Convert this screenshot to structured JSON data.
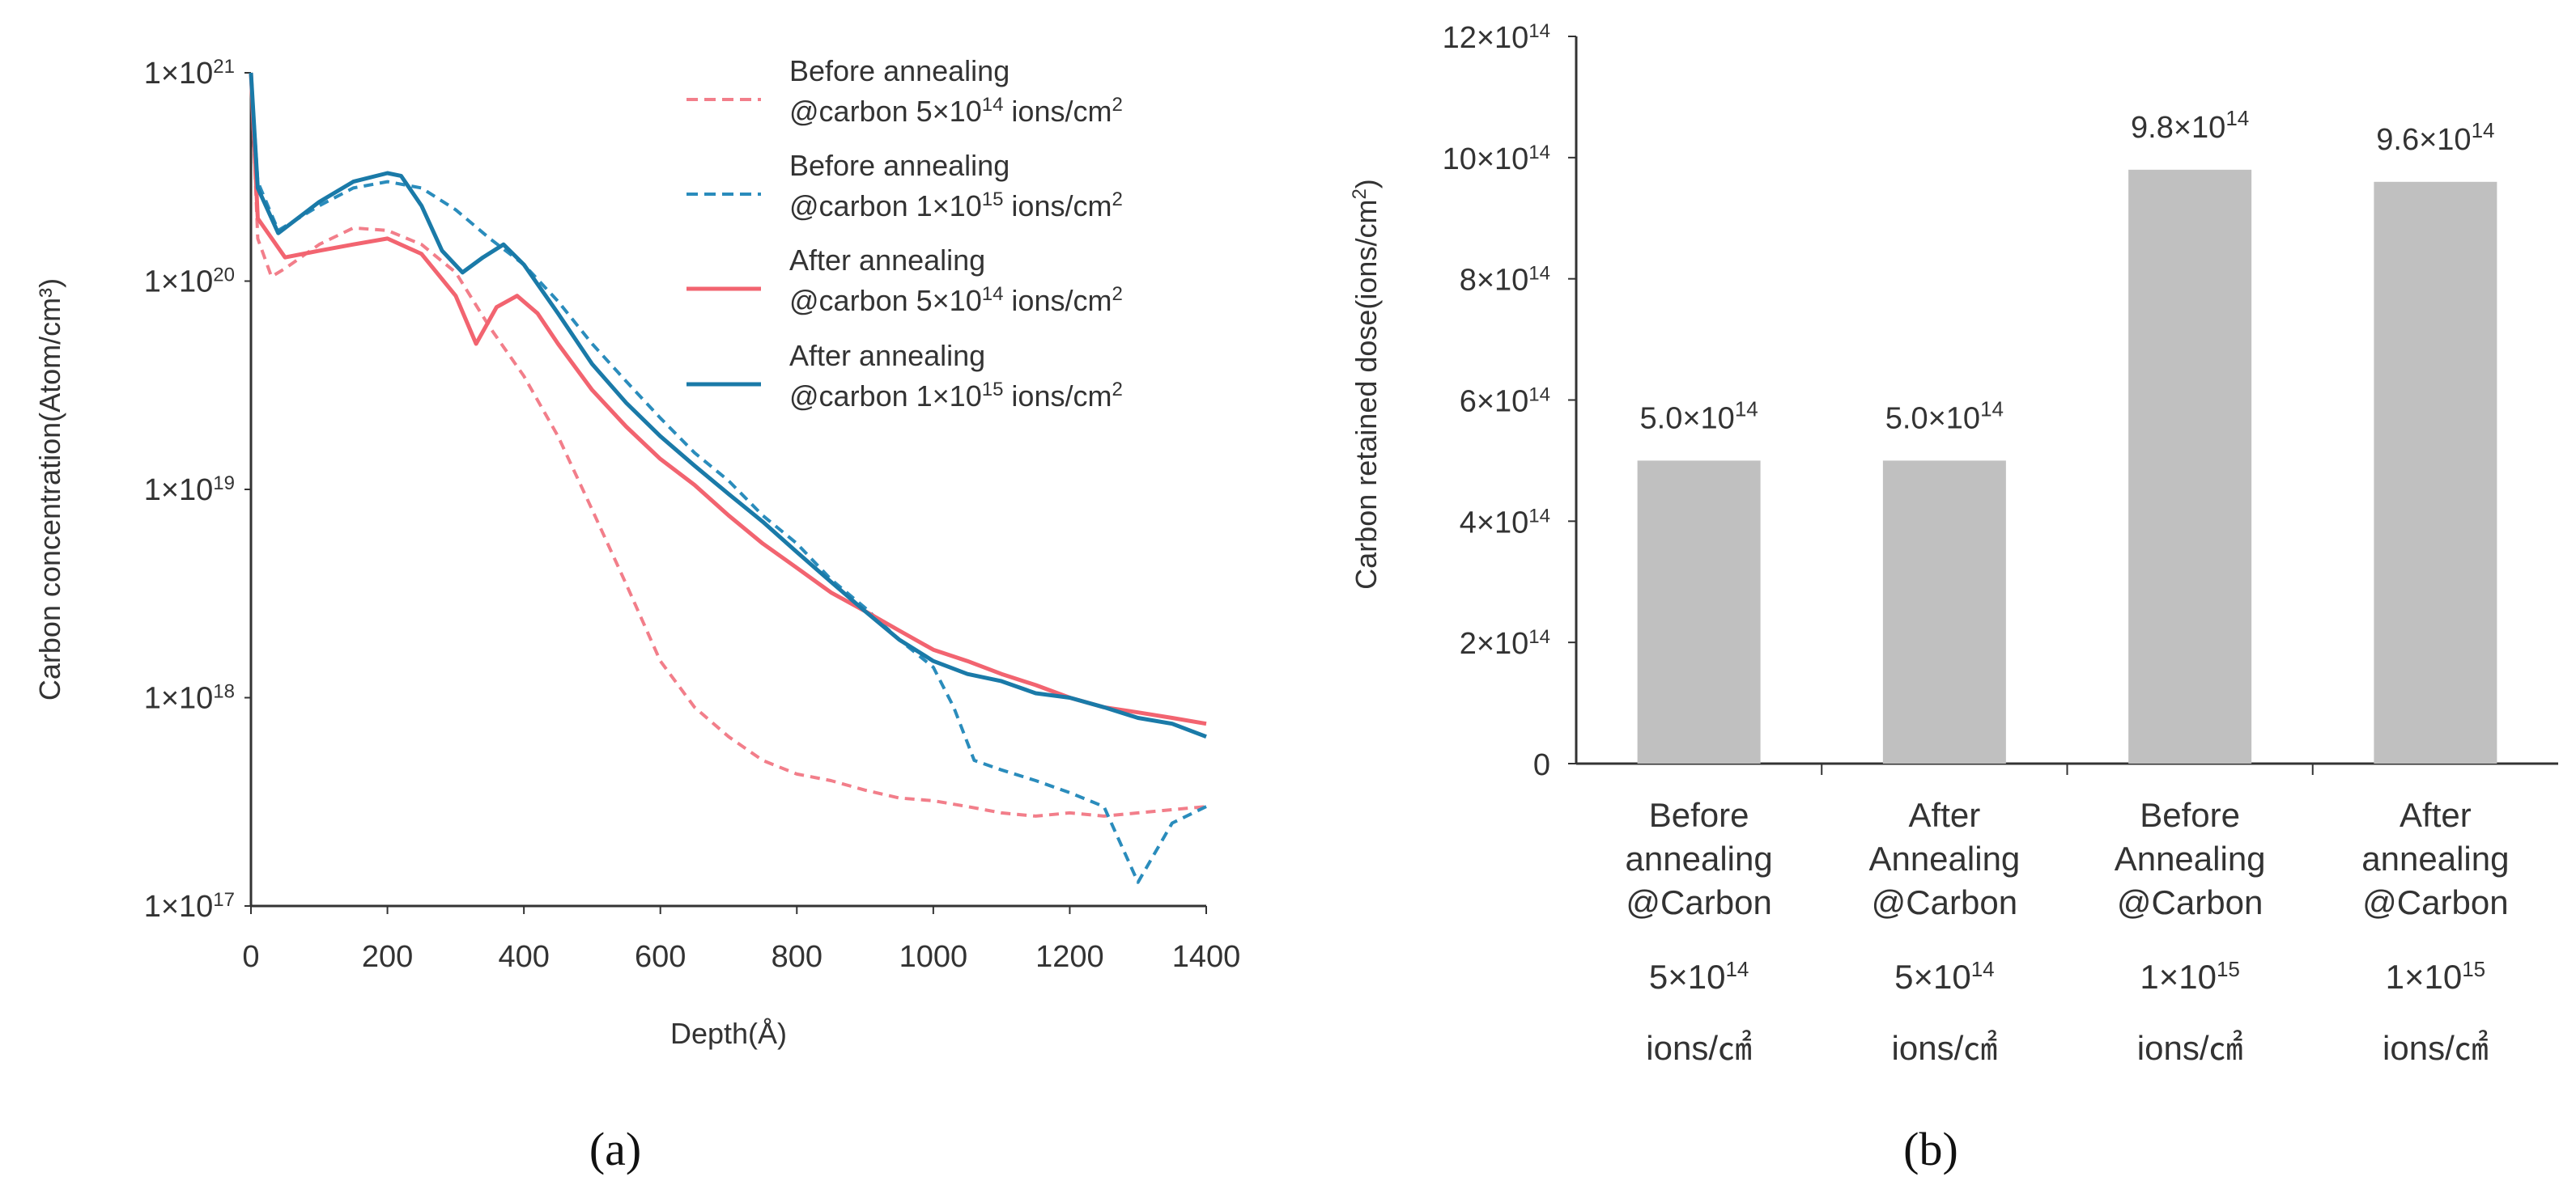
{
  "colors": {
    "pink": "#f26470",
    "pink_dashed": "#f27e8a",
    "blue": "#1a7aa8",
    "blue_dashed": "#2a8cbc",
    "bar": "#c0c0c0",
    "axis": "#333333"
  },
  "panel_labels": {
    "a": "(a)",
    "b": "(b)"
  },
  "chart_data": [
    {
      "type": "line",
      "log_scale_y": true,
      "xlabel": "Depth(Å)",
      "ylabel": "Carbon concentration(Atom/cm³)",
      "xlim": [
        0,
        1400
      ],
      "ylim": [
        1e+17,
        1e+21
      ],
      "xticks": [
        "0",
        "200",
        "400",
        "600",
        "800",
        "1000",
        "1200",
        "1400"
      ],
      "yticks": [
        {
          "mant": "1×10",
          "exp": "21"
        },
        {
          "mant": "1×10",
          "exp": "20"
        },
        {
          "mant": "1×10",
          "exp": "19"
        },
        {
          "mant": "1×10",
          "exp": "18"
        },
        {
          "mant": "1×10",
          "exp": "17"
        }
      ],
      "legend_placement": "top-right",
      "series": [
        {
          "name": "Before annealing @carbon 5×10¹⁴ ions/cm²",
          "legend_line1": "Before annealing",
          "legend_line2_pre": "@carbon 5×10",
          "legend_line2_exp": "14",
          "legend_line2_post": " ions/cm",
          "legend_line2_sup": "2",
          "color": "#f27e8a",
          "dashed": true,
          "x": [
            0,
            10,
            30,
            50,
            100,
            150,
            200,
            250,
            300,
            350,
            400,
            450,
            500,
            550,
            600,
            650,
            700,
            750,
            800,
            850,
            900,
            950,
            1000,
            1050,
            1100,
            1150,
            1200,
            1250,
            1300,
            1350,
            1400
          ],
          "y": [
            1e+21,
            1.6e+20,
            1.05e+20,
            1.15e+20,
            1.5e+20,
            1.8e+20,
            1.75e+20,
            1.5e+20,
            1.1e+20,
            6e+19,
            3.5e+19,
            1.8e+19,
            8e+18,
            3.5e+18,
            1.5e+18,
            9e+17,
            6.5e+17,
            5e+17,
            4.3e+17,
            4e+17,
            3.6e+17,
            3.3e+17,
            3.2e+17,
            3e+17,
            2.8e+17,
            2.7e+17,
            2.8e+17,
            2.7e+17,
            2.8e+17,
            2.9e+17,
            3e+17
          ]
        },
        {
          "name": "Before annealing @carbon 1×10¹⁵ ions/cm²",
          "legend_line1": "Before annealing",
          "legend_line2_pre": "@carbon 1×10",
          "legend_line2_exp": "15",
          "legend_line2_post": " ions/cm",
          "legend_line2_sup": "2",
          "color": "#2a8cbc",
          "dashed": true,
          "x": [
            0,
            10,
            40,
            100,
            150,
            200,
            250,
            300,
            350,
            400,
            450,
            500,
            550,
            600,
            650,
            700,
            750,
            800,
            850,
            900,
            950,
            1000,
            1030,
            1060,
            1100,
            1150,
            1200,
            1250,
            1300,
            1350,
            1400
          ],
          "y": [
            1e+21,
            3e+20,
            1.75e+20,
            2.3e+20,
            2.8e+20,
            3e+20,
            2.8e+20,
            2.2e+20,
            1.6e+20,
            1.2e+20,
            8e+19,
            5e+19,
            3.3e+19,
            2.2e+19,
            1.5e+19,
            1.1e+19,
            7.5e+18,
            5.5e+18,
            3.7e+18,
            2.7e+18,
            1.9e+18,
            1.4e+18,
            9e+17,
            5e+17,
            4.5e+17,
            4e+17,
            3.5e+17,
            3e+17,
            1.3e+17,
            2.5e+17,
            3e+17
          ]
        },
        {
          "name": "After annealing @carbon 5×10¹⁴ ions/cm²",
          "legend_line1": "After annealing",
          "legend_line2_pre": "@carbon 5×10",
          "legend_line2_exp": "14",
          "legend_line2_post": " ions/cm",
          "legend_line2_sup": "2",
          "color": "#f26470",
          "dashed": false,
          "x": [
            0,
            10,
            50,
            100,
            150,
            200,
            250,
            300,
            330,
            360,
            390,
            420,
            450,
            500,
            550,
            600,
            650,
            700,
            750,
            800,
            850,
            900,
            950,
            1000,
            1050,
            1100,
            1150,
            1200,
            1250,
            1300,
            1350,
            1400
          ],
          "y": [
            1e+21,
            2e+20,
            1.3e+20,
            1.4e+20,
            1.5e+20,
            1.6e+20,
            1.35e+20,
            8.5e+19,
            5e+19,
            7.5e+19,
            8.5e+19,
            7e+19,
            5e+19,
            3e+19,
            2e+19,
            1.4e+19,
            1.05e+19,
            7.5e+18,
            5.5e+18,
            4.2e+18,
            3.2e+18,
            2.6e+18,
            2.1e+18,
            1.7e+18,
            1.5e+18,
            1.3e+18,
            1.15e+18,
            1e+18,
            9e+17,
            8.5e+17,
            8e+17,
            7.5e+17
          ]
        },
        {
          "name": "After annealing @carbon 1×10¹⁵ ions/cm²",
          "legend_line1": "After annealing",
          "legend_line2_pre": "@carbon 1×10",
          "legend_line2_exp": "15",
          "legend_line2_post": " ions/cm",
          "legend_line2_sup": "2",
          "color": "#1a7aa8",
          "dashed": false,
          "x": [
            0,
            10,
            40,
            100,
            150,
            200,
            220,
            250,
            280,
            310,
            340,
            370,
            400,
            450,
            500,
            550,
            600,
            650,
            700,
            750,
            800,
            850,
            900,
            950,
            1000,
            1050,
            1100,
            1150,
            1200,
            1250,
            1300,
            1350,
            1400
          ],
          "y": [
            1e+21,
            2.8e+20,
            1.7e+20,
            2.4e+20,
            3e+20,
            3.3e+20,
            3.2e+20,
            2.3e+20,
            1.4e+20,
            1.1e+20,
            1.3e+20,
            1.5e+20,
            1.2e+20,
            7e+19,
            4e+19,
            2.6e+19,
            1.8e+19,
            1.3e+19,
            9.5e+18,
            7e+18,
            5e+18,
            3.6e+18,
            2.6e+18,
            1.9e+18,
            1.5e+18,
            1.3e+18,
            1.2e+18,
            1.05e+18,
            1e+18,
            9e+17,
            8e+17,
            7.5e+17,
            6.5e+17
          ]
        }
      ]
    },
    {
      "type": "bar",
      "ylabel_pre": "Carbon retained dose(ions/cm",
      "ylabel_sup": "2",
      "ylabel_post": ")",
      "ylim": [
        0,
        1200000000000000.0
      ],
      "yticks": [
        {
          "value": 0,
          "mant": "0",
          "exp": ""
        },
        {
          "value": 200000000000000.0,
          "mant": "2×10",
          "exp": "14"
        },
        {
          "value": 400000000000000.0,
          "mant": "4×10",
          "exp": "14"
        },
        {
          "value": 600000000000000.0,
          "mant": "6×10",
          "exp": "14"
        },
        {
          "value": 800000000000000.0,
          "mant": "8×10",
          "exp": "14"
        },
        {
          "value": 1000000000000000.0,
          "mant": "10×10",
          "exp": "14"
        },
        {
          "value": 1200000000000000.0,
          "mant": "12×10",
          "exp": "14"
        }
      ],
      "categories": [
        {
          "l1": "Before",
          "l2": "annealing",
          "l3": "@Carbon",
          "l4_pre": "5×10",
          "l4_exp": "14",
          "l5": "ions/㎠"
        },
        {
          "l1": "After",
          "l2": "Annealing",
          "l3": "@Carbon",
          "l4_pre": "5×10",
          "l4_exp": "14",
          "l5": "ions/㎠"
        },
        {
          "l1": "Before",
          "l2": "Annealing",
          "l3": "@Carbon",
          "l4_pre": "1×10",
          "l4_exp": "15",
          "l5": "ions/㎠"
        },
        {
          "l1": "After",
          "l2": "annealing",
          "l3": "@Carbon",
          "l4_pre": "1×10",
          "l4_exp": "15",
          "l5": "ions/㎠"
        }
      ],
      "values": [
        500000000000000.0,
        500000000000000.0,
        980000000000000.0,
        960000000000000.0
      ],
      "value_labels": [
        {
          "pre": "5.0×10",
          "exp": "14"
        },
        {
          "pre": "5.0×10",
          "exp": "14"
        },
        {
          "pre": "9.8×10",
          "exp": "14"
        },
        {
          "pre": "9.6×10",
          "exp": "14"
        }
      ]
    }
  ]
}
